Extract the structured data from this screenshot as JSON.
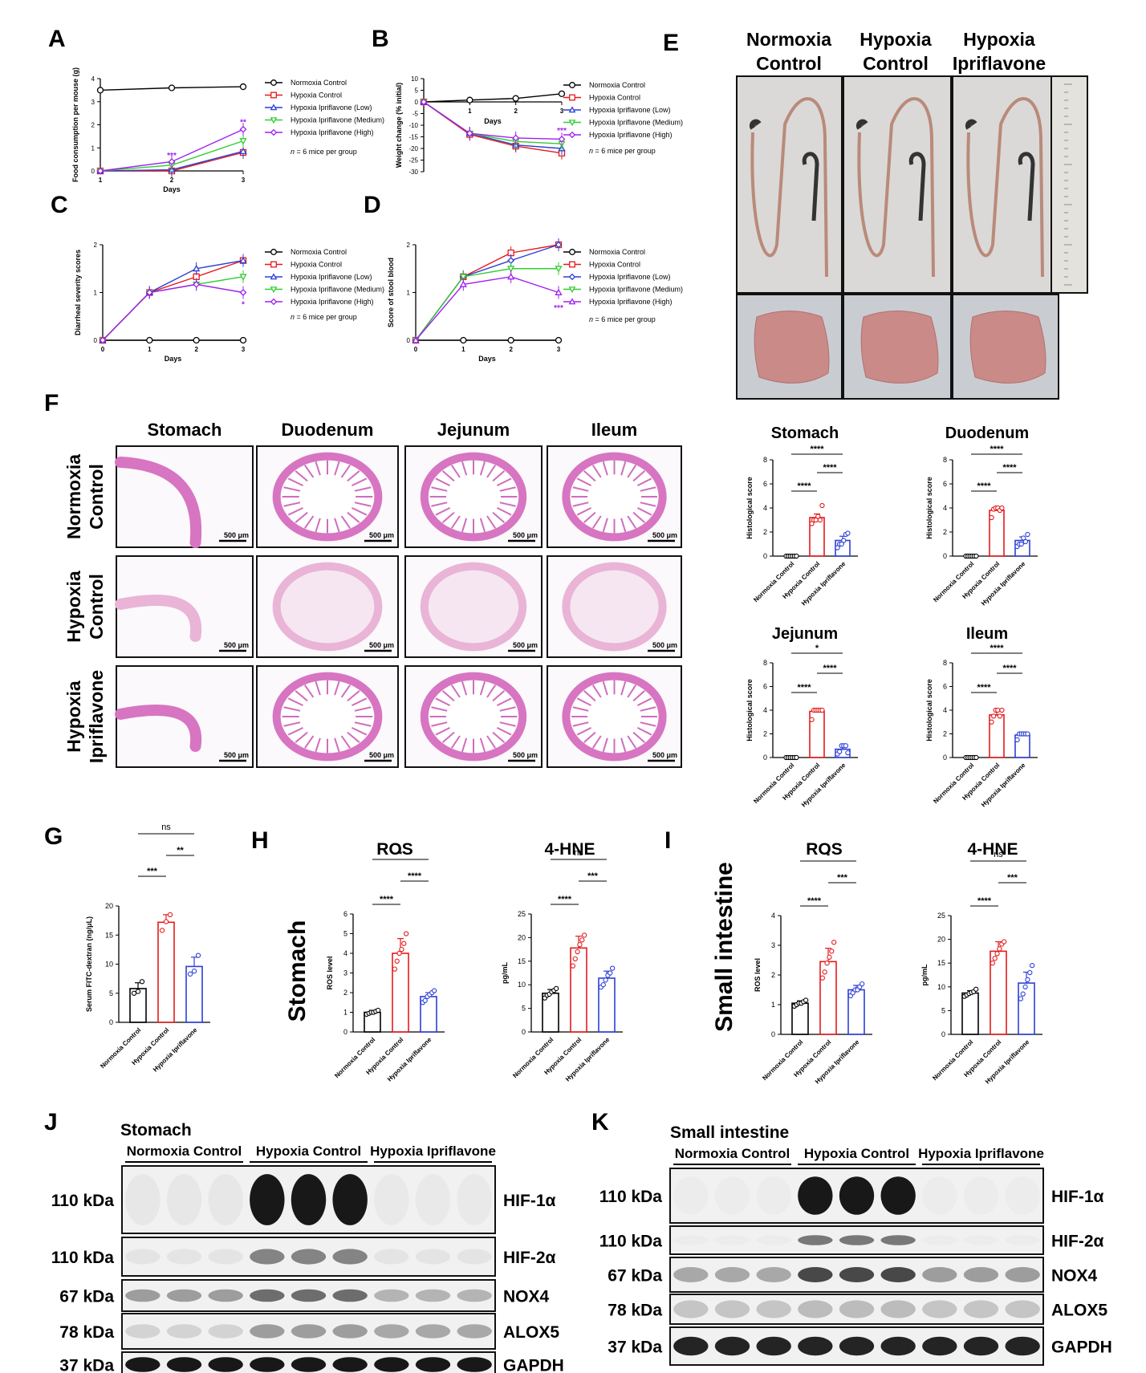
{
  "legend_groups": {
    "five": [
      "Normoxia Control",
      "Hypoxia Control",
      "Hypoxia Ipriflavone (Low)",
      "Hypoxia Ipriflavone (Medium)",
      "Hypoxia Ipriflavone (High)"
    ],
    "three": [
      "Normoxia Control",
      "Hypoxia Control",
      "Hypoxia Ipriflavone"
    ]
  },
  "colors": {
    "normoxia": "#000000",
    "hypoxia": "#e41a1c",
    "low": "#2d3fd6",
    "medium": "#33cc33",
    "high": "#a020f0",
    "ipri": "#2d3fd6"
  },
  "n_note": "n = 6 mice per group",
  "chart_data": [
    {
      "id": "A",
      "type": "line",
      "panel_label": "A",
      "ylabel": "Food consumption per mouse (g)",
      "xlabel": "Days",
      "x": [
        1,
        2,
        3
      ],
      "xlim": [
        1,
        3
      ],
      "ylim": [
        0,
        4
      ],
      "yticks": [
        0,
        1,
        2,
        3,
        4
      ],
      "xticks": [
        1,
        2,
        3
      ],
      "series": [
        {
          "name": "Normoxia Control",
          "values": [
            3.5,
            3.6,
            3.65
          ],
          "color": "#000000",
          "marker": "circle"
        },
        {
          "name": "Hypoxia Control",
          "values": [
            0,
            0,
            0.8
          ],
          "color": "#e41a1c",
          "marker": "square"
        },
        {
          "name": "Hypoxia Ipriflavone (Low)",
          "values": [
            0,
            0.05,
            0.85
          ],
          "color": "#2d3fd6",
          "marker": "triangle"
        },
        {
          "name": "Hypoxia Ipriflavone (Medium)",
          "values": [
            0,
            0.25,
            1.3
          ],
          "color": "#33cc33",
          "marker": "triangle-down"
        },
        {
          "name": "Hypoxia Ipriflavone (High)",
          "values": [
            0,
            0.4,
            1.8
          ],
          "color": "#a020f0",
          "marker": "diamond"
        }
      ],
      "annotations": [
        {
          "x": 2,
          "y": 0.55,
          "text": "***",
          "color": "#a020f0"
        },
        {
          "x": 3,
          "y": 2.0,
          "text": "**",
          "color": "#a020f0"
        }
      ],
      "legend": "right"
    },
    {
      "id": "B",
      "type": "line",
      "panel_label": "B",
      "ylabel": "Weight change (% initial)",
      "xlabel": "Days",
      "x": [
        0,
        1,
        2,
        3
      ],
      "xlim": [
        0,
        3
      ],
      "ylim": [
        -30,
        10
      ],
      "yticks": [
        10,
        5,
        0,
        -5,
        -10,
        -15,
        -20,
        -25,
        -30
      ],
      "xticks": [
        1,
        2,
        3
      ],
      "series": [
        {
          "name": "Normoxia Control",
          "values": [
            0,
            0.8,
            1.5,
            3.5
          ],
          "color": "#000000",
          "marker": "circle"
        },
        {
          "name": "Hypoxia Control",
          "values": [
            0,
            -14,
            -19,
            -22
          ],
          "color": "#e41a1c",
          "marker": "square"
        },
        {
          "name": "Hypoxia Ipriflavone (Low)",
          "values": [
            0,
            -13.5,
            -18.5,
            -20
          ],
          "color": "#2d3fd6",
          "marker": "triangle"
        },
        {
          "name": "Hypoxia Ipriflavone (Medium)",
          "values": [
            0,
            -13.5,
            -17,
            -18
          ],
          "color": "#33cc33",
          "marker": "triangle-down"
        },
        {
          "name": "Hypoxia Ipriflavone (High)",
          "values": [
            0,
            -13.5,
            -15.5,
            -16
          ],
          "color": "#a020f0",
          "marker": "diamond"
        }
      ],
      "annotations": [
        {
          "x": 3,
          "y": -13.5,
          "text": "***",
          "color": "#a020f0"
        }
      ],
      "legend": "right"
    },
    {
      "id": "C",
      "type": "line",
      "panel_label": "C",
      "ylabel": "Diarrheal severity scores",
      "xlabel": "Days",
      "x": [
        0,
        1,
        2,
        3
      ],
      "xlim": [
        0,
        3
      ],
      "ylim": [
        0,
        2
      ],
      "yticks": [
        0,
        1,
        2
      ],
      "xticks": [
        0,
        1,
        2,
        3
      ],
      "series": [
        {
          "name": "Normoxia Control",
          "values": [
            0,
            0,
            0,
            0
          ],
          "color": "#000000",
          "marker": "circle"
        },
        {
          "name": "Hypoxia Control",
          "values": [
            0,
            1,
            1.33,
            1.67
          ],
          "color": "#e41a1c",
          "marker": "square"
        },
        {
          "name": "Hypoxia Ipriflavone (Low)",
          "values": [
            0,
            1,
            1.5,
            1.67
          ],
          "color": "#2d3fd6",
          "marker": "triangle"
        },
        {
          "name": "Hypoxia Ipriflavone (Medium)",
          "values": [
            0,
            1,
            1.17,
            1.33
          ],
          "color": "#33cc33",
          "marker": "triangle-down"
        },
        {
          "name": "Hypoxia Ipriflavone (High)",
          "values": [
            0,
            1,
            1.17,
            1.0
          ],
          "color": "#a020f0",
          "marker": "diamond"
        }
      ],
      "annotations": [
        {
          "x": 3,
          "y": 0.7,
          "text": "*",
          "color": "#a020f0"
        }
      ],
      "legend": "right"
    },
    {
      "id": "D",
      "type": "line",
      "panel_label": "D",
      "ylabel": "Score of stool blood",
      "xlabel": "Days",
      "x": [
        0,
        1,
        2,
        3
      ],
      "xlim": [
        0,
        3
      ],
      "ylim": [
        0,
        2
      ],
      "yticks": [
        0,
        1,
        2
      ],
      "xticks": [
        0,
        1,
        2,
        3
      ],
      "series": [
        {
          "name": "Normoxia Control",
          "values": [
            0,
            0,
            0,
            0
          ],
          "color": "#000000",
          "marker": "circle"
        },
        {
          "name": "Hypoxia Control",
          "values": [
            0,
            1.33,
            1.83,
            2.0
          ],
          "color": "#e41a1c",
          "marker": "square"
        },
        {
          "name": "Hypoxia Ipriflavone (Low)",
          "values": [
            0,
            1.33,
            1.67,
            2.0
          ],
          "color": "#2d3fd6",
          "marker": "diamond"
        },
        {
          "name": "Hypoxia Ipriflavone (Medium)",
          "values": [
            0,
            1.33,
            1.5,
            1.5
          ],
          "color": "#33cc33",
          "marker": "triangle-down"
        },
        {
          "name": "Hypoxia Ipriflavone (High)",
          "values": [
            0,
            1.17,
            1.33,
            1.0
          ],
          "color": "#a020f0",
          "marker": "triangle"
        }
      ],
      "annotations": [
        {
          "x": 3,
          "y": 0.62,
          "text": "***",
          "color": "#a020f0"
        }
      ],
      "legend": "right"
    },
    {
      "id": "F_stomach",
      "type": "bar",
      "title": "Stomach",
      "ylabel": "Histological score",
      "ylim": [
        0,
        8
      ],
      "yticks": [
        0,
        2,
        4,
        6,
        8
      ],
      "categories": [
        "Normoxia Control",
        "Hypoxia Control",
        "Hypoxia Ipriflavone"
      ],
      "values": [
        0,
        3.2,
        1.3
      ],
      "errors": [
        0,
        0.3,
        0.35
      ],
      "points": [
        [
          0,
          0,
          0,
          0,
          0,
          0
        ],
        [
          2.7,
          3,
          3,
          3.3,
          3,
          4.2
        ],
        [
          0.7,
          1,
          1,
          1.3,
          1.8,
          1.9
        ]
      ],
      "significance": [
        {
          "from": 0,
          "to": 1,
          "text": "****"
        },
        {
          "from": 1,
          "to": 2,
          "text": "****"
        },
        {
          "from": 0,
          "to": 2,
          "text": "****"
        }
      ]
    },
    {
      "id": "F_duodenum",
      "type": "bar",
      "title": "Duodenum",
      "ylabel": "Histological score",
      "ylim": [
        0,
        8
      ],
      "yticks": [
        0,
        2,
        4,
        6,
        8
      ],
      "categories": [
        "Normoxia Control",
        "Hypoxia Control",
        "Hypoxia Ipriflavone"
      ],
      "values": [
        0,
        3.8,
        1.3
      ],
      "errors": [
        0,
        0.2,
        0.3
      ],
      "points": [
        [
          0,
          0,
          0,
          0,
          0,
          0
        ],
        [
          3.2,
          3.9,
          4,
          4,
          3.8,
          4
        ],
        [
          0.8,
          1,
          1,
          1.5,
          1.2,
          1.8
        ]
      ],
      "significance": [
        {
          "from": 0,
          "to": 1,
          "text": "****"
        },
        {
          "from": 1,
          "to": 2,
          "text": "****"
        },
        {
          "from": 0,
          "to": 2,
          "text": "****"
        }
      ]
    },
    {
      "id": "F_jejunum",
      "type": "bar",
      "title": "Jejunum",
      "ylabel": "Histological score",
      "ylim": [
        0,
        8
      ],
      "yticks": [
        0,
        2,
        4,
        6,
        8
      ],
      "categories": [
        "Normoxia Control",
        "Hypoxia Control",
        "Hypoxia Ipriflavone"
      ],
      "values": [
        0,
        3.9,
        0.7
      ],
      "errors": [
        0,
        0.2,
        0.3
      ],
      "points": [
        [
          0,
          0,
          0,
          0,
          0,
          0
        ],
        [
          3.2,
          4,
          4,
          4,
          4,
          4
        ],
        [
          0.3,
          0.5,
          1,
          1,
          1,
          0.4
        ]
      ],
      "significance": [
        {
          "from": 0,
          "to": 1,
          "text": "****"
        },
        {
          "from": 1,
          "to": 2,
          "text": "****"
        },
        {
          "from": 0,
          "to": 2,
          "text": "*"
        }
      ]
    },
    {
      "id": "F_ileum",
      "type": "bar",
      "title": "Ileum",
      "ylabel": "Histological score",
      "ylim": [
        0,
        8
      ],
      "yticks": [
        0,
        2,
        4,
        6,
        8
      ],
      "categories": [
        "Normoxia Control",
        "Hypoxia Control",
        "Hypoxia Ipriflavone"
      ],
      "values": [
        0,
        3.6,
        1.9
      ],
      "errors": [
        0,
        0.35,
        0.1
      ],
      "points": [
        [
          0,
          0,
          0,
          0,
          0,
          0
        ],
        [
          3,
          3.5,
          4,
          4,
          3.5,
          4
        ],
        [
          1.5,
          2,
          2,
          2,
          2,
          2
        ]
      ],
      "significance": [
        {
          "from": 0,
          "to": 1,
          "text": "****"
        },
        {
          "from": 1,
          "to": 2,
          "text": "****"
        },
        {
          "from": 0,
          "to": 2,
          "text": "****"
        }
      ]
    },
    {
      "id": "G",
      "type": "bar",
      "panel_label": "G",
      "ylabel": "Serum FITC-dextran (ng/μL)",
      "ylim": [
        0,
        20
      ],
      "yticks": [
        0,
        5,
        10,
        15,
        20
      ],
      "categories": [
        "Normoxia Control",
        "Hypoxia Control",
        "Hypoxia Ipriflavone"
      ],
      "values": [
        5.8,
        17.2,
        9.6
      ],
      "errors": [
        1.0,
        1.3,
        1.6
      ],
      "points": [
        [
          5,
          5.3,
          7
        ],
        [
          15.8,
          17.3,
          18.5
        ],
        [
          8.3,
          8.8,
          11.5
        ]
      ],
      "significance": [
        {
          "from": 0,
          "to": 1,
          "text": "***"
        },
        {
          "from": 1,
          "to": 2,
          "text": "**"
        },
        {
          "from": 0,
          "to": 2,
          "text": "ns"
        }
      ]
    },
    {
      "id": "H_ros",
      "type": "bar",
      "panel_label": "H",
      "title": "ROS",
      "ylabel": "ROS level",
      "ylim": [
        0,
        6
      ],
      "yticks": [
        0,
        1,
        2,
        3,
        4,
        5,
        6
      ],
      "categories": [
        "Normoxia Control",
        "Hypoxia Control",
        "Hypoxia Ipriflavone"
      ],
      "values": [
        1.0,
        4.0,
        1.8
      ],
      "errors": [
        0.1,
        0.75,
        0.2
      ],
      "points": [
        [
          0.9,
          0.95,
          1,
          1,
          1.05,
          1.1
        ],
        [
          3.2,
          3.6,
          4,
          4.2,
          4.5,
          5
        ],
        [
          1.5,
          1.6,
          1.8,
          1.9,
          2,
          2.1
        ]
      ],
      "significance": [
        {
          "from": 0,
          "to": 1,
          "text": "****"
        },
        {
          "from": 1,
          "to": 2,
          "text": "****"
        },
        {
          "from": 0,
          "to": 2,
          "text": "*"
        }
      ]
    },
    {
      "id": "H_4hne",
      "type": "bar",
      "title": "4-HNE",
      "ylabel": "pg/mL",
      "ylim": [
        0,
        25
      ],
      "yticks": [
        0,
        5,
        10,
        15,
        20,
        25
      ],
      "categories": [
        "Normoxia Control",
        "Hypoxia Control",
        "Hypoxia Ipriflavone"
      ],
      "values": [
        8.2,
        17.8,
        11.4
      ],
      "errors": [
        0.8,
        2.5,
        1.5
      ],
      "points": [
        [
          7.2,
          7.8,
          8,
          8.5,
          8.8,
          9.2
        ],
        [
          14,
          15.5,
          17,
          18.5,
          19.5,
          20.5
        ],
        [
          9.5,
          10,
          11,
          12,
          12.5,
          13.5
        ]
      ],
      "significance": [
        {
          "from": 0,
          "to": 1,
          "text": "****"
        },
        {
          "from": 1,
          "to": 2,
          "text": "***"
        },
        {
          "from": 0,
          "to": 2,
          "text": "ns"
        }
      ]
    },
    {
      "id": "I_ros",
      "type": "bar",
      "panel_label": "I",
      "title": "ROS",
      "ylabel": "ROS level",
      "ylim": [
        0,
        4
      ],
      "yticks": [
        0,
        1,
        2,
        3,
        4
      ],
      "categories": [
        "Normoxia Control",
        "Hypoxia Control",
        "Hypoxia Ipriflavone"
      ],
      "values": [
        1.05,
        2.45,
        1.5
      ],
      "errors": [
        0.08,
        0.45,
        0.15
      ],
      "points": [
        [
          0.95,
          1,
          1.05,
          1.05,
          1.1,
          1.15
        ],
        [
          1.9,
          2.1,
          2.4,
          2.6,
          2.8,
          3.1
        ],
        [
          1.3,
          1.4,
          1.5,
          1.5,
          1.6,
          1.7
        ]
      ],
      "significance": [
        {
          "from": 0,
          "to": 1,
          "text": "****"
        },
        {
          "from": 1,
          "to": 2,
          "text": "***"
        },
        {
          "from": 0,
          "to": 2,
          "text": "*"
        }
      ]
    },
    {
      "id": "I_4hne",
      "type": "bar",
      "title": "4-HNE",
      "ylabel": "pg/mL",
      "ylim": [
        0,
        25
      ],
      "yticks": [
        0,
        5,
        10,
        15,
        20,
        25
      ],
      "categories": [
        "Normoxia Control",
        "Hypoxia Control",
        "Hypoxia Ipriflavone"
      ],
      "values": [
        8.7,
        17.5,
        10.8
      ],
      "errors": [
        0.5,
        2.0,
        2.3
      ],
      "points": [
        [
          8,
          8.3,
          8.6,
          8.8,
          9,
          9.5
        ],
        [
          15,
          16,
          17,
          18,
          19,
          19.5
        ],
        [
          7.5,
          8.5,
          10,
          11.5,
          13,
          14.5
        ]
      ],
      "significance": [
        {
          "from": 0,
          "to": 1,
          "text": "****"
        },
        {
          "from": 1,
          "to": 2,
          "text": "***"
        },
        {
          "from": 0,
          "to": 2,
          "text": "ns"
        }
      ]
    }
  ],
  "panel_E": {
    "label": "E",
    "columns": [
      "Normoxia\nControl",
      "Hypoxia\nControl",
      "Hypoxia\nIpriflavone"
    ]
  },
  "panel_F": {
    "label": "F",
    "columns": [
      "Stomach",
      "Duodenum",
      "Jejunum",
      "Ileum"
    ],
    "rows": [
      "Normoxia\nControl",
      "Hypoxia\nControl",
      "Hypoxia\nIpriflavone"
    ],
    "scale_bar": "500 μm"
  },
  "side_labels": {
    "stomach": "Stomach",
    "small_intestine": "Small intestine"
  },
  "blot_J": {
    "label": "J",
    "title": "Stomach",
    "groups": [
      "Normoxia Control",
      "Hypoxia Control",
      "Hypoxia Ipriflavone"
    ],
    "proteins": [
      "HIF-1α",
      "HIF-2α",
      "NOX4",
      "ALOX5",
      "GAPDH"
    ],
    "sizes": [
      "110 kDa",
      "110 kDa",
      "67 kDa",
      "78 kDa",
      "37 kDa"
    ]
  },
  "blot_K": {
    "label": "K",
    "title": "Small intestine",
    "groups": [
      "Normoxia Control",
      "Hypoxia Control",
      "Hypoxia Ipriflavone"
    ],
    "proteins": [
      "HIF-1α",
      "HIF-2α",
      "NOX4",
      "ALOX5",
      "GAPDH"
    ],
    "sizes": [
      "110 kDa",
      "110 kDa",
      "67 kDa",
      "78 kDa",
      "37 kDa"
    ]
  }
}
